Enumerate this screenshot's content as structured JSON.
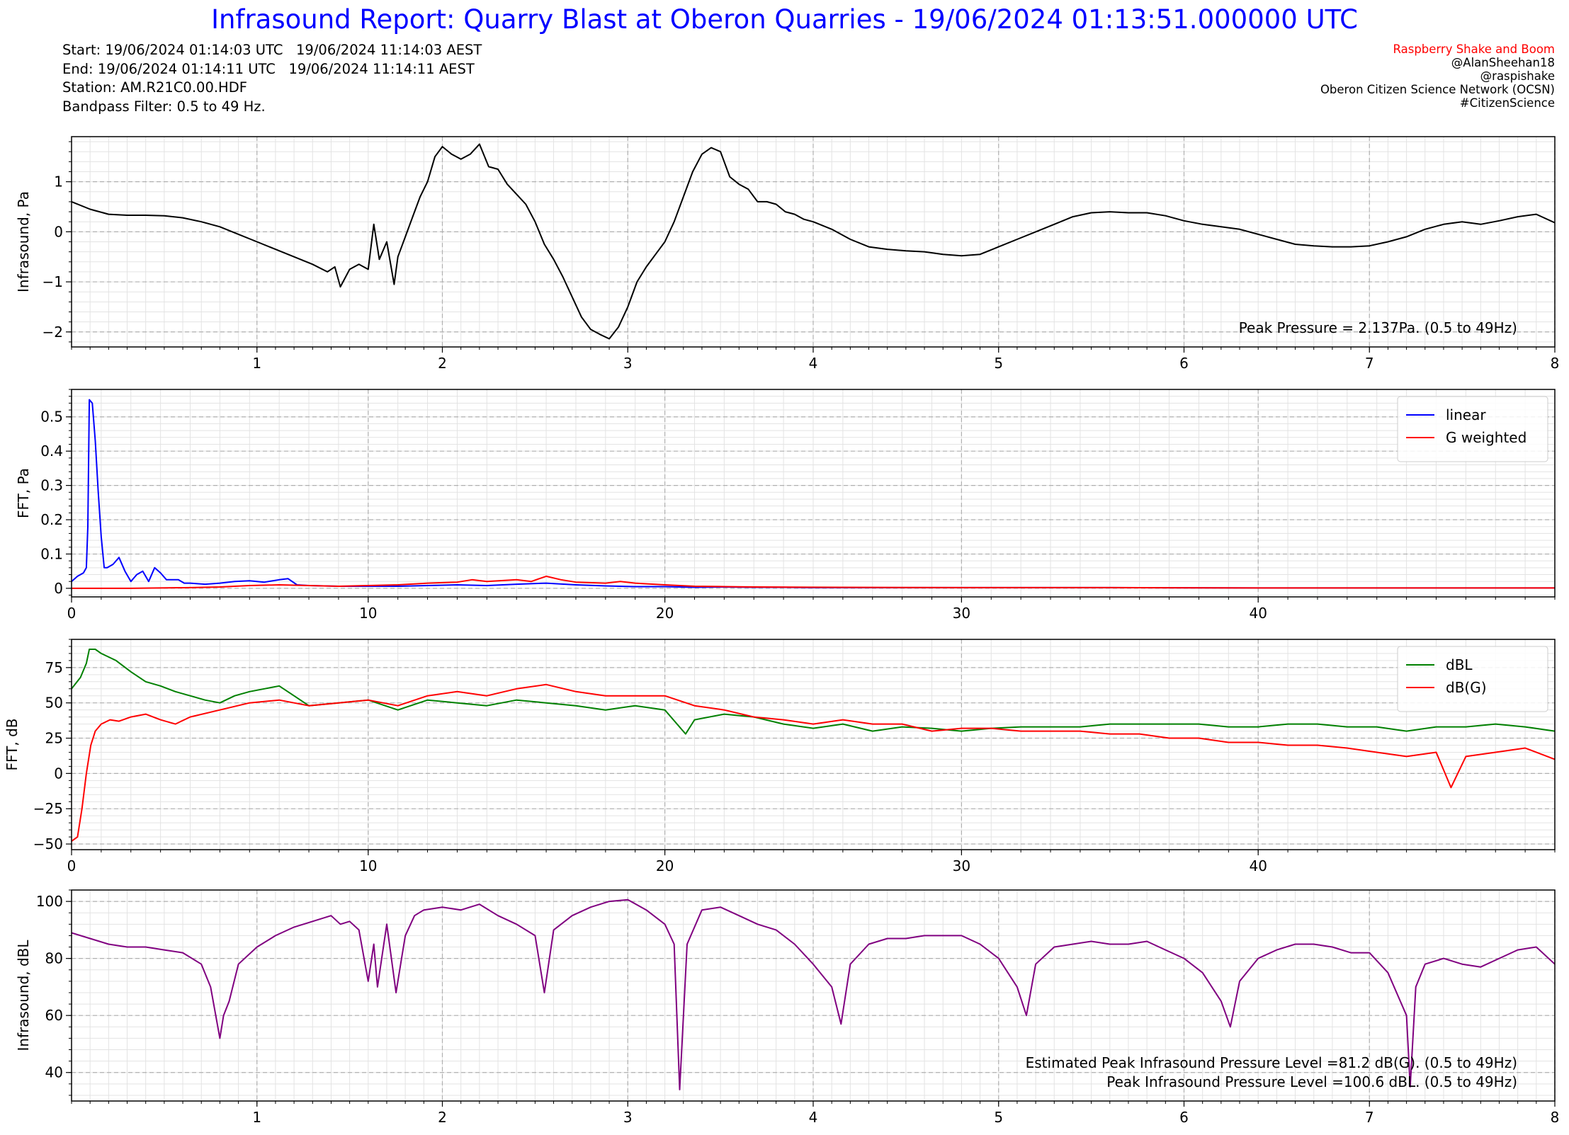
{
  "header": {
    "title": "Infrasound Report: Quarry Blast at Oberon Quarries - 19/06/2024 01:13:51.000000 UTC",
    "start": "Start: 19/06/2024 01:14:03 UTC   19/06/2024 11:14:03 AEST",
    "end": "End: 19/06/2024 01:14:11 UTC   19/06/2024 11:14:11 AEST",
    "station": "Station: AM.R21C0.00.HDF",
    "filter": "Bandpass Filter: 0.5 to 49 Hz."
  },
  "credits": {
    "brand": "Raspberry Shake and Boom",
    "author": "@AlanSheehan18",
    "handle": "@raspishake",
    "network": "Oberon Citizen Science Network (OCSN)",
    "tag": "#CitizenScience",
    "brand_color": "#ff0000"
  },
  "colors": {
    "title": "#0000ff",
    "waveform": "#000000",
    "linear": "#0000ff",
    "g_weighted": "#ff0000",
    "dbl": "#008000",
    "dbg": "#ff0000",
    "spl": "#800080"
  },
  "chart_data": [
    {
      "type": "line",
      "ylabel": "Infrasound, Pa",
      "xlim": [
        0,
        8
      ],
      "ylim": [
        -2.3,
        1.9
      ],
      "xticks": [
        1,
        2,
        3,
        4,
        5,
        6,
        7,
        8
      ],
      "yticks": [
        -2,
        -1,
        0,
        1
      ],
      "grid": true,
      "annotations": [
        "Peak Pressure = 2.137Pa. (0.5 to 49Hz)"
      ],
      "series": [
        {
          "color": "#000000",
          "x": [
            0,
            0.1,
            0.2,
            0.3,
            0.4,
            0.5,
            0.6,
            0.7,
            0.8,
            0.9,
            1.0,
            1.1,
            1.2,
            1.3,
            1.38,
            1.42,
            1.45,
            1.5,
            1.55,
            1.6,
            1.63,
            1.66,
            1.7,
            1.74,
            1.76,
            1.8,
            1.84,
            1.88,
            1.92,
            1.96,
            2.0,
            2.05,
            2.1,
            2.15,
            2.2,
            2.25,
            2.3,
            2.35,
            2.4,
            2.45,
            2.5,
            2.55,
            2.6,
            2.65,
            2.7,
            2.75,
            2.8,
            2.85,
            2.9,
            2.95,
            3.0,
            3.05,
            3.1,
            3.15,
            3.2,
            3.25,
            3.3,
            3.35,
            3.4,
            3.45,
            3.5,
            3.55,
            3.6,
            3.65,
            3.7,
            3.75,
            3.8,
            3.85,
            3.9,
            3.95,
            4.0,
            4.1,
            4.2,
            4.3,
            4.4,
            4.5,
            4.6,
            4.7,
            4.8,
            4.9,
            5.0,
            5.1,
            5.2,
            5.3,
            5.4,
            5.5,
            5.6,
            5.7,
            5.8,
            5.9,
            6.0,
            6.1,
            6.2,
            6.3,
            6.4,
            6.5,
            6.6,
            6.7,
            6.8,
            6.9,
            7.0,
            7.1,
            7.2,
            7.3,
            7.4,
            7.5,
            7.6,
            7.7,
            7.8,
            7.9,
            8.0
          ],
          "y": [
            0.6,
            0.45,
            0.35,
            0.33,
            0.33,
            0.32,
            0.28,
            0.2,
            0.1,
            -0.05,
            -0.2,
            -0.35,
            -0.5,
            -0.65,
            -0.8,
            -0.7,
            -1.1,
            -0.75,
            -0.65,
            -0.75,
            0.15,
            -0.55,
            -0.2,
            -1.05,
            -0.5,
            -0.1,
            0.3,
            0.7,
            1.0,
            1.5,
            1.7,
            1.55,
            1.45,
            1.55,
            1.75,
            1.3,
            1.25,
            0.95,
            0.75,
            0.55,
            0.2,
            -0.25,
            -0.55,
            -0.9,
            -1.3,
            -1.7,
            -1.95,
            -2.05,
            -2.137,
            -1.9,
            -1.5,
            -1.0,
            -0.7,
            -0.45,
            -0.2,
            0.2,
            0.7,
            1.2,
            1.55,
            1.68,
            1.6,
            1.1,
            0.95,
            0.85,
            0.6,
            0.6,
            0.55,
            0.4,
            0.35,
            0.25,
            0.2,
            0.05,
            -0.15,
            -0.3,
            -0.35,
            -0.38,
            -0.4,
            -0.45,
            -0.48,
            -0.45,
            -0.3,
            -0.15,
            0.0,
            0.15,
            0.3,
            0.38,
            0.4,
            0.38,
            0.38,
            0.32,
            0.22,
            0.15,
            0.1,
            0.05,
            -0.05,
            -0.15,
            -0.25,
            -0.28,
            -0.3,
            -0.3,
            -0.28,
            -0.2,
            -0.1,
            0.05,
            0.15,
            0.2,
            0.15,
            0.22,
            0.3,
            0.35,
            0.18
          ]
        }
      ]
    },
    {
      "type": "line",
      "ylabel": "FFT, Pa",
      "xlim": [
        0,
        50
      ],
      "ylim": [
        -0.025,
        0.58
      ],
      "xticks": [
        0,
        10,
        20,
        30,
        40
      ],
      "yticks": [
        0.0,
        0.1,
        0.2,
        0.3,
        0.4,
        0.5
      ],
      "grid": true,
      "legend": "top-right",
      "series": [
        {
          "name": "linear",
          "color": "#0000ff",
          "x": [
            0,
            0.2,
            0.4,
            0.5,
            0.55,
            0.6,
            0.7,
            0.8,
            0.9,
            1.0,
            1.1,
            1.2,
            1.4,
            1.6,
            1.8,
            2.0,
            2.2,
            2.4,
            2.6,
            2.8,
            3.0,
            3.2,
            3.4,
            3.6,
            3.8,
            4.0,
            4.5,
            5.0,
            5.5,
            6.0,
            6.5,
            7.0,
            7.3,
            7.6,
            8.0,
            9.0,
            10,
            11,
            12,
            13,
            14,
            15,
            16,
            17,
            18,
            19,
            20,
            21,
            22,
            23,
            24,
            25,
            30,
            35,
            40,
            45,
            50
          ],
          "y": [
            0.02,
            0.035,
            0.045,
            0.06,
            0.18,
            0.55,
            0.54,
            0.43,
            0.28,
            0.15,
            0.06,
            0.06,
            0.07,
            0.09,
            0.05,
            0.02,
            0.04,
            0.05,
            0.02,
            0.06,
            0.045,
            0.025,
            0.025,
            0.025,
            0.015,
            0.015,
            0.012,
            0.015,
            0.02,
            0.022,
            0.018,
            0.025,
            0.028,
            0.01,
            0.008,
            0.006,
            0.006,
            0.006,
            0.008,
            0.01,
            0.008,
            0.012,
            0.015,
            0.01,
            0.007,
            0.005,
            0.005,
            0.003,
            0.004,
            0.003,
            0.003,
            0.002,
            0.002,
            0.002,
            0.001,
            0.001,
            0.001
          ]
        },
        {
          "name": "G weighted",
          "color": "#ff0000",
          "x": [
            0,
            2,
            4,
            5,
            6,
            7,
            8,
            9,
            10,
            11,
            12,
            13,
            13.5,
            14,
            15,
            15.5,
            16,
            16.5,
            17,
            18,
            18.5,
            19,
            20,
            21,
            22,
            23,
            25,
            30,
            35,
            40,
            45,
            50
          ],
          "y": [
            0.0,
            0.0,
            0.002,
            0.004,
            0.008,
            0.01,
            0.008,
            0.006,
            0.008,
            0.01,
            0.015,
            0.018,
            0.025,
            0.02,
            0.025,
            0.02,
            0.035,
            0.025,
            0.018,
            0.015,
            0.02,
            0.015,
            0.01,
            0.006,
            0.005,
            0.004,
            0.003,
            0.002,
            0.002,
            0.001,
            0.001,
            0.001
          ]
        }
      ]
    },
    {
      "type": "line",
      "ylabel": "FFT, dB",
      "xlim": [
        0,
        50
      ],
      "ylim": [
        -54,
        95
      ],
      "xticks": [
        0,
        10,
        20,
        30,
        40
      ],
      "yticks": [
        -50,
        -25,
        0,
        25,
        50,
        75
      ],
      "grid": true,
      "legend": "top-right",
      "series": [
        {
          "name": "dBL",
          "color": "#008000",
          "x": [
            0,
            0.3,
            0.5,
            0.6,
            0.8,
            1,
            1.5,
            2,
            2.5,
            3,
            3.5,
            4,
            4.5,
            5,
            5.5,
            6,
            6.5,
            7,
            7.5,
            8,
            9,
            10,
            11,
            12,
            13,
            14,
            15,
            16,
            17,
            18,
            19,
            20,
            20.7,
            21,
            22,
            23,
            24,
            25,
            26,
            27,
            28,
            29,
            30,
            31,
            32,
            33,
            34,
            35,
            36,
            37,
            38,
            39,
            40,
            41,
            42,
            43,
            44,
            45,
            46,
            47,
            48,
            49,
            50
          ],
          "y": [
            60,
            68,
            78,
            88,
            88,
            85,
            80,
            72,
            65,
            62,
            58,
            55,
            52,
            50,
            55,
            58,
            60,
            62,
            55,
            48,
            50,
            52,
            45,
            52,
            50,
            48,
            52,
            50,
            48,
            45,
            48,
            45,
            28,
            38,
            42,
            40,
            35,
            32,
            35,
            30,
            33,
            32,
            30,
            32,
            33,
            33,
            33,
            35,
            35,
            35,
            35,
            33,
            33,
            35,
            35,
            33,
            33,
            30,
            33,
            33,
            35,
            33,
            30
          ]
        },
        {
          "name": "dB(G)",
          "color": "#ff0000",
          "x": [
            0,
            0.2,
            0.35,
            0.5,
            0.65,
            0.8,
            1.0,
            1.3,
            1.6,
            2,
            2.5,
            3,
            3.5,
            4,
            5,
            6,
            7,
            8,
            9,
            10,
            11,
            12,
            13,
            14,
            15,
            16,
            17,
            18,
            19,
            20,
            21,
            22,
            23,
            24,
            25,
            26,
            27,
            28,
            29,
            30,
            31,
            32,
            33,
            34,
            35,
            36,
            37,
            38,
            39,
            40,
            41,
            42,
            43,
            44,
            45,
            46,
            46.5,
            47,
            48,
            49,
            50
          ],
          "y": [
            -48,
            -45,
            -25,
            0,
            20,
            30,
            35,
            38,
            37,
            40,
            42,
            38,
            35,
            40,
            45,
            50,
            52,
            48,
            50,
            52,
            48,
            55,
            58,
            55,
            60,
            63,
            58,
            55,
            55,
            55,
            48,
            45,
            40,
            38,
            35,
            38,
            35,
            35,
            30,
            32,
            32,
            30,
            30,
            30,
            28,
            28,
            25,
            25,
            22,
            22,
            20,
            20,
            18,
            15,
            12,
            15,
            -10,
            12,
            15,
            18,
            10
          ]
        }
      ]
    },
    {
      "type": "line",
      "ylabel": "Infrasound, dBL",
      "xlim": [
        0,
        8
      ],
      "ylim": [
        30,
        104
      ],
      "xticks": [
        1,
        2,
        3,
        4,
        5,
        6,
        7,
        8
      ],
      "yticks": [
        40,
        60,
        80,
        100
      ],
      "grid": true,
      "annotations": [
        "Estimated Peak Infrasound Pressure Level =81.2 dB(G). (0.5 to 49Hz)",
        "Peak Infrasound Pressure Level =100.6 dBL. (0.5 to 49Hz)"
      ],
      "series": [
        {
          "color": "#800080",
          "x": [
            0,
            0.1,
            0.2,
            0.3,
            0.4,
            0.5,
            0.6,
            0.7,
            0.75,
            0.8,
            0.82,
            0.85,
            0.9,
            1.0,
            1.1,
            1.2,
            1.3,
            1.4,
            1.45,
            1.5,
            1.55,
            1.6,
            1.63,
            1.65,
            1.7,
            1.75,
            1.78,
            1.8,
            1.85,
            1.9,
            2.0,
            2.1,
            2.2,
            2.3,
            2.4,
            2.5,
            2.55,
            2.6,
            2.7,
            2.8,
            2.9,
            3.0,
            3.1,
            3.2,
            3.25,
            3.28,
            3.32,
            3.4,
            3.5,
            3.6,
            3.7,
            3.8,
            3.9,
            4.0,
            4.1,
            4.15,
            4.2,
            4.3,
            4.4,
            4.5,
            4.6,
            4.7,
            4.8,
            4.9,
            5.0,
            5.1,
            5.15,
            5.2,
            5.3,
            5.4,
            5.5,
            5.6,
            5.7,
            5.8,
            5.9,
            6.0,
            6.1,
            6.2,
            6.25,
            6.3,
            6.4,
            6.5,
            6.6,
            6.7,
            6.8,
            6.9,
            7.0,
            7.1,
            7.2,
            7.22,
            7.25,
            7.3,
            7.4,
            7.5,
            7.6,
            7.7,
            7.8,
            7.9,
            8.0
          ],
          "y": [
            89,
            87,
            85,
            84,
            84,
            83,
            82,
            78,
            70,
            52,
            60,
            65,
            78,
            84,
            88,
            91,
            93,
            95,
            92,
            93,
            90,
            72,
            85,
            70,
            92,
            68,
            80,
            88,
            95,
            97,
            98,
            97,
            99,
            95,
            92,
            88,
            68,
            90,
            95,
            98,
            100,
            100.6,
            97,
            92,
            85,
            34,
            85,
            97,
            98,
            95,
            92,
            90,
            85,
            78,
            70,
            57,
            78,
            85,
            87,
            87,
            88,
            88,
            88,
            85,
            80,
            70,
            60,
            78,
            84,
            85,
            86,
            85,
            85,
            86,
            83,
            80,
            75,
            65,
            56,
            72,
            80,
            83,
            85,
            85,
            84,
            82,
            82,
            75,
            60,
            35,
            70,
            78,
            80,
            78,
            77,
            80,
            83,
            84,
            78
          ]
        }
      ]
    }
  ]
}
